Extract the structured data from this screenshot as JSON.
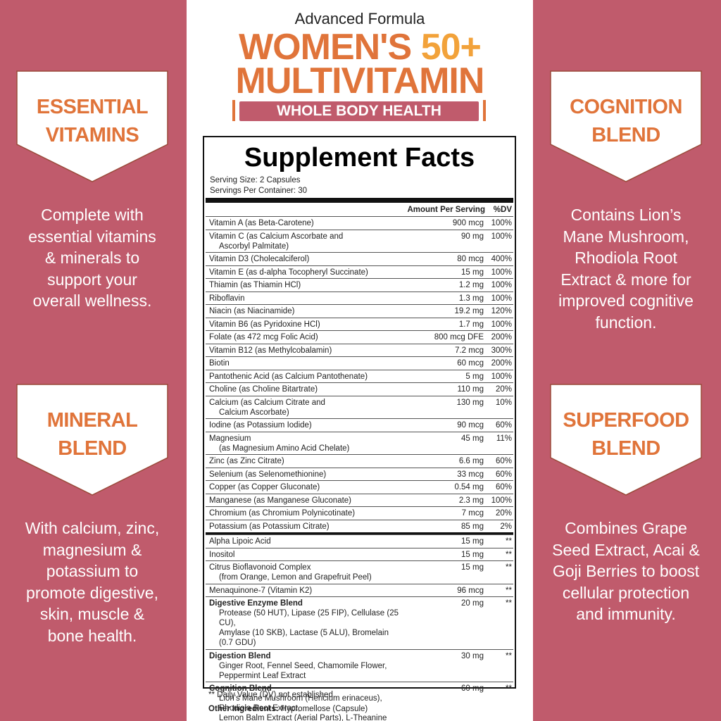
{
  "header": {
    "subtitle": "Advanced Formula",
    "title_part1": "WOMEN'S",
    "title_part2": "50+",
    "title_line2": "MULTIVITAMIN",
    "tagline": "WHOLE BODY HEALTH"
  },
  "left_panels": [
    {
      "badge": [
        "ESSENTIAL",
        "VITAMINS"
      ],
      "description": [
        "Complete with",
        "essential vitamins",
        "& minerals to",
        "support your",
        "overall wellness."
      ]
    },
    {
      "badge": [
        "MINERAL",
        "BLEND"
      ],
      "description": [
        "With calcium, zinc,",
        "magnesium &",
        "potassium to",
        "promote digestive,",
        "skin, muscle &",
        "bone health."
      ]
    }
  ],
  "right_panels": [
    {
      "badge": [
        "COGNITION",
        "BLEND"
      ],
      "description": [
        "Contains Lion’s",
        "Mane Mushroom,",
        "Rhodiola Root",
        "Extract & more for",
        "improved cognitive",
        "function."
      ]
    },
    {
      "badge": [
        "SUPERFOOD",
        "BLEND"
      ],
      "description": [
        "Combines Grape",
        "Seed Extract, Acai &",
        "Goji Berries to boost",
        "cellular protection",
        "and immunity."
      ]
    }
  ],
  "supplement_facts": {
    "title": "Supplement Facts",
    "serving_size": "Serving Size: 2 Capsules",
    "servings_per_container": "Servings Per Container: 30",
    "columns": [
      "Amount Per Serving",
      "%DV"
    ],
    "rows": [
      {
        "name": [
          "Vitamin A (as Beta-Carotene)"
        ],
        "amount": "900 mcg",
        "dv": "100%"
      },
      {
        "name": [
          "Vitamin C (as Calcium Ascorbate and",
          "Ascorbyl Palmitate)"
        ],
        "amount": "90 mg",
        "dv": "100%"
      },
      {
        "name": [
          "Vitamin D3 (Cholecalciferol)"
        ],
        "amount": "80 mcg",
        "dv": "400%"
      },
      {
        "name": [
          "Vitamin E (as d-alpha Tocopheryl Succinate)"
        ],
        "amount": "15 mg",
        "dv": "100%"
      },
      {
        "name": [
          "Thiamin (as Thiamin HCl)"
        ],
        "amount": "1.2 mg",
        "dv": "100%"
      },
      {
        "name": [
          "Riboflavin"
        ],
        "amount": "1.3 mg",
        "dv": "100%"
      },
      {
        "name": [
          "Niacin (as Niacinamide)"
        ],
        "amount": "19.2 mg",
        "dv": "120%"
      },
      {
        "name": [
          "Vitamin B6 (as Pyridoxine HCl)"
        ],
        "amount": "1.7 mg",
        "dv": "100%"
      },
      {
        "name": [
          "Folate (as 472 mcg Folic Acid)"
        ],
        "amount": "800 mcg DFE",
        "dv": "200%"
      },
      {
        "name": [
          "Vitamin B12 (as Methylcobalamin)"
        ],
        "amount": "7.2 mcg",
        "dv": "300%"
      },
      {
        "name": [
          "Biotin"
        ],
        "amount": "60 mcg",
        "dv": "200%"
      },
      {
        "name": [
          "Pantothenic Acid (as Calcium Pantothenate)"
        ],
        "amount": "5 mg",
        "dv": "100%"
      },
      {
        "name": [
          "Choline (as Choline Bitartrate)"
        ],
        "amount": "110 mg",
        "dv": "20%"
      },
      {
        "name": [
          "Calcium (as Calcium Citrate and",
          "Calcium Ascorbate)"
        ],
        "amount": "130 mg",
        "dv": "10%"
      },
      {
        "name": [
          "Iodine (as Potassium Iodide)"
        ],
        "amount": "90 mcg",
        "dv": "60%"
      },
      {
        "name": [
          "Magnesium",
          "(as Magnesium Amino Acid Chelate)"
        ],
        "amount": "45 mg",
        "dv": "11%"
      },
      {
        "name": [
          "Zinc (as Zinc Citrate)"
        ],
        "amount": "6.6 mg",
        "dv": "60%"
      },
      {
        "name": [
          "Selenium (as Selenomethionine)"
        ],
        "amount": "33 mcg",
        "dv": "60%"
      },
      {
        "name": [
          "Copper (as Copper Gluconate)"
        ],
        "amount": "0.54 mg",
        "dv": "60%"
      },
      {
        "name": [
          "Manganese (as Manganese Gluconate)"
        ],
        "amount": "2.3 mg",
        "dv": "100%"
      },
      {
        "name": [
          "Chromium (as Chromium Polynicotinate)"
        ],
        "amount": "7 mcg",
        "dv": "20%"
      },
      {
        "name": [
          "Potassium (as Potassium Citrate)"
        ],
        "amount": "85 mg",
        "dv": "2%"
      }
    ],
    "other_rows": [
      {
        "name": [
          "Alpha Lipoic Acid"
        ],
        "amount": "15 mg",
        "dv": "**"
      },
      {
        "name": [
          "Inositol"
        ],
        "amount": "15 mg",
        "dv": "**"
      },
      {
        "name": [
          "Citrus Bioflavonoid Complex",
          "(from Orange, Lemon and Grapefruit Peel)"
        ],
        "amount": "15 mg",
        "dv": "**"
      },
      {
        "name": [
          "Menaquinone-7 (Vitamin K2)"
        ],
        "amount": "96 mcg",
        "dv": "**"
      },
      {
        "name": [
          "Digestive Enzyme Blend"
        ],
        "details": [
          "Protease (50 HUT), Lipase (25 FIP), Cellulase (25 CU),",
          "Amylase (10 SKB), Lactase (5 ALU), Bromelain (0.7 GDU)"
        ],
        "amount": "20 mg",
        "dv": "**"
      },
      {
        "name": [
          "Digestion Blend"
        ],
        "details": [
          "Ginger Root, Fennel Seed, Chamomile Flower, Peppermint Leaf Extract"
        ],
        "amount": "30 mg",
        "dv": "**"
      },
      {
        "name": [
          "Cognition Blend"
        ],
        "details": [
          "Lion's Mane Mushroom (Hericium erinaceus), Rhodiola Root Extract,",
          "Lemon Balm Extract (Aerial Parts), L-Theanine"
        ],
        "amount": "60 mg",
        "dv": "**"
      }
    ],
    "footnote": "** Daily Value (DV) not established.",
    "other_ingredients": {
      "label": "Other Ingredients:",
      "value": "Hypromellose (Capsule)"
    }
  }
}
